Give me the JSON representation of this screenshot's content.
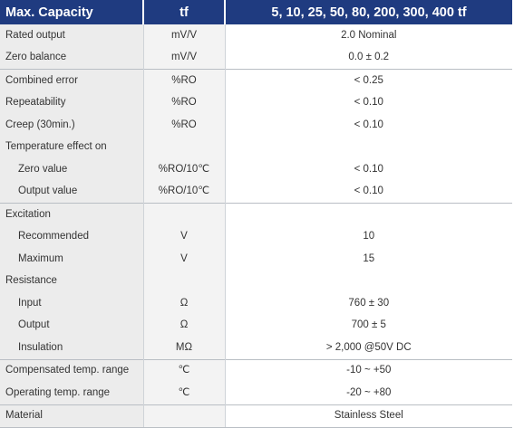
{
  "header": {
    "col1": "Max. Capacity",
    "col2": "tf",
    "col3": "5, 10, 25, 50, 80, 200, 300, 400 tf"
  },
  "rows": [
    {
      "label": "Rated output",
      "unit": "mV/V",
      "value": "2.0 Nominal"
    },
    {
      "label": "Zero balance",
      "unit": "mV/V",
      "value": "0.0 ± 0.2"
    },
    {
      "label": "Combined error",
      "unit": "%RO",
      "value": "< 0.25"
    },
    {
      "label": "Repeatability",
      "unit": "%RO",
      "value": "< 0.10"
    },
    {
      "label": "Creep (30min.)",
      "unit": "%RO",
      "value": "< 0.10"
    },
    {
      "label": "Temperature effect on",
      "unit": "",
      "value": ""
    },
    {
      "label": "Zero value",
      "unit": "%RO/10℃",
      "value": "< 0.10"
    },
    {
      "label": "Output  value",
      "unit": "%RO/10℃",
      "value": "< 0.10"
    },
    {
      "label": "Excitation",
      "unit": "",
      "value": ""
    },
    {
      "label": "Recommended",
      "unit": "V",
      "value": "10"
    },
    {
      "label": "Maximum",
      "unit": "V",
      "value": "15"
    },
    {
      "label": "Resistance",
      "unit": "",
      "value": ""
    },
    {
      "label": "Input",
      "unit": "Ω",
      "value": "760 ± 30"
    },
    {
      "label": "Output",
      "unit": "Ω",
      "value": "700 ± 5"
    },
    {
      "label": "Insulation",
      "unit": "MΩ",
      "value": "> 2,000 @50V DC"
    },
    {
      "label": "Compensated temp. range",
      "unit": "℃",
      "value": "-10 ~ +50"
    },
    {
      "label": "Operating temp. range",
      "unit": "℃",
      "value": "-20 ~ +80"
    },
    {
      "label": "Material",
      "unit": "",
      "value": "Stainless  Steel"
    }
  ]
}
